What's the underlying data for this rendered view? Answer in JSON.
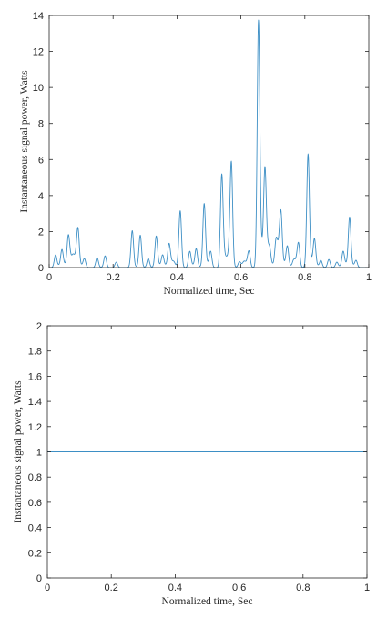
{
  "colors": {
    "series": "#3d8fc5",
    "axis": "#262626"
  },
  "chart_data": [
    {
      "type": "line",
      "title": "",
      "xlabel": "Normalized time, Sec",
      "ylabel": "Instantaneous signal power, Watts",
      "xlim": [
        0,
        1
      ],
      "ylim": [
        0,
        14
      ],
      "xticks": [
        0,
        0.2,
        0.4,
        0.6,
        0.8,
        1
      ],
      "xtick_labels": [
        "0",
        "0.2",
        "0.4",
        "0.6",
        "0.8",
        "1"
      ],
      "yticks": [
        0,
        2,
        4,
        6,
        8,
        10,
        12,
        14
      ],
      "ytick_labels": [
        "0",
        "2",
        "4",
        "6",
        "8",
        "10",
        "12",
        "14"
      ],
      "grid": false,
      "series": [
        {
          "peaks": [
            [
              0.02,
              0.7
            ],
            [
              0.04,
              1.0
            ],
            [
              0.06,
              1.75
            ],
            [
              0.075,
              0.6
            ],
            [
              0.09,
              2.15
            ],
            [
              0.11,
              0.5
            ],
            [
              0.15,
              0.55
            ],
            [
              0.175,
              0.65
            ],
            [
              0.21,
              0.3
            ],
            [
              0.26,
              2.05
            ],
            [
              0.285,
              1.8
            ],
            [
              0.31,
              0.5
            ],
            [
              0.335,
              1.75
            ],
            [
              0.355,
              0.7
            ],
            [
              0.375,
              1.3
            ],
            [
              0.39,
              0.3
            ],
            [
              0.41,
              3.15
            ],
            [
              0.44,
              0.9
            ],
            [
              0.46,
              1.05
            ],
            [
              0.485,
              3.55
            ],
            [
              0.505,
              0.9
            ],
            [
              0.54,
              5.1
            ],
            [
              0.555,
              0.4
            ],
            [
              0.57,
              5.8
            ],
            [
              0.595,
              0.3
            ],
            [
              0.61,
              0.3
            ],
            [
              0.625,
              0.9
            ],
            [
              0.655,
              13.7
            ],
            [
              0.675,
              5.4
            ],
            [
              0.69,
              1.0
            ],
            [
              0.71,
              1.5
            ],
            [
              0.725,
              3.05
            ],
            [
              0.745,
              1.2
            ],
            [
              0.765,
              0.4
            ],
            [
              0.78,
              1.35
            ],
            [
              0.81,
              6.3
            ],
            [
              0.83,
              1.6
            ],
            [
              0.85,
              0.4
            ],
            [
              0.875,
              0.45
            ],
            [
              0.9,
              0.3
            ],
            [
              0.92,
              0.9
            ],
            [
              0.94,
              2.8
            ],
            [
              0.96,
              0.4
            ]
          ]
        }
      ]
    },
    {
      "type": "line",
      "title": "",
      "xlabel": "Normalized time, Sec",
      "ylabel": "Instantaneous signal power, Watts",
      "xlim": [
        0,
        1
      ],
      "ylim": [
        0,
        2
      ],
      "xticks": [
        0,
        0.2,
        0.4,
        0.6,
        0.8,
        1
      ],
      "xtick_labels": [
        "0",
        "0.2",
        "0.4",
        "0.6",
        "0.8",
        "1"
      ],
      "yticks": [
        0,
        0.2,
        0.4,
        0.6,
        0.8,
        1,
        1.2,
        1.4,
        1.6,
        1.8,
        2
      ],
      "ytick_labels": [
        "0",
        "0.2",
        "0.4",
        "0.6",
        "0.8",
        "1",
        "1.2",
        "1.4",
        "1.6",
        "1.8",
        "2"
      ],
      "grid": false,
      "series": [
        {
          "x": [
            0,
            1
          ],
          "y": [
            1,
            1
          ]
        }
      ]
    }
  ]
}
